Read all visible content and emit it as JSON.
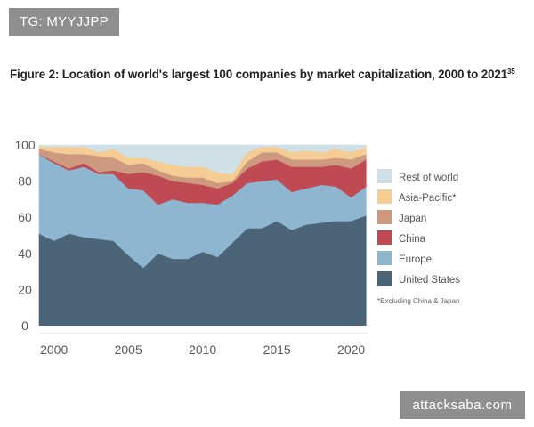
{
  "tag": "TG: MYYJJPP",
  "watermark": "attacksaba.com",
  "figure": {
    "title": "Figure 2: Location of world's largest 100 companies by market capitalization, 2000 to 2021",
    "footnote_ref": "35"
  },
  "chart_data": {
    "type": "area",
    "stacked": true,
    "title": "Figure 2: Location of world's largest 100 companies by market capitalization, 2000 to 2021",
    "xlabel": "",
    "ylabel": "",
    "xlim": [
      1999,
      2021.1
    ],
    "ylim": [
      0,
      100
    ],
    "grid": false,
    "x": [
      1999,
      2000,
      2001,
      2002,
      2003,
      2004,
      2005,
      2006,
      2007,
      2008,
      2009,
      2010,
      2011,
      2012,
      2013,
      2014,
      2015,
      2016,
      2017,
      2018,
      2019,
      2020,
      2021
    ],
    "series": [
      {
        "name": "United States",
        "color": "#4b6478",
        "values": [
          51,
          47,
          51,
          49,
          48,
          47,
          39,
          32,
          40,
          37,
          37,
          41,
          38,
          46,
          54,
          54,
          58,
          53,
          56,
          57,
          58,
          58,
          61
        ]
      },
      {
        "name": "Europe",
        "color": "#8eb6d0",
        "values": [
          44,
          43,
          35,
          39,
          36,
          37,
          37,
          43,
          27,
          33,
          31,
          27,
          29,
          26,
          25,
          26,
          23,
          21,
          20,
          21,
          19,
          13,
          16
        ]
      },
      {
        "name": "China",
        "color": "#c04a53",
        "values": [
          0,
          1,
          1,
          2,
          1,
          2,
          8,
          10,
          16,
          10,
          11,
          10,
          9,
          7,
          8,
          11,
          11,
          14,
          12,
          10,
          12,
          16,
          15
        ]
      },
      {
        "name": "Japan",
        "color": "#cd9a80",
        "values": [
          3,
          5,
          8,
          5,
          9,
          7,
          5,
          5,
          3,
          3,
          3,
          4,
          3,
          1,
          4,
          5,
          4,
          4,
          4,
          4,
          4,
          5,
          3
        ]
      },
      {
        "name": "Asia-Pacific*",
        "color": "#f4cc94",
        "values": [
          1,
          3,
          4,
          4,
          2,
          5,
          4,
          3,
          5,
          6,
          6,
          6,
          6,
          4,
          5,
          3,
          3,
          4,
          5,
          4,
          5,
          4,
          4
        ]
      },
      {
        "name": "Rest of world",
        "color": "#cfe0e6",
        "values": [
          1,
          1,
          1,
          1,
          4,
          2,
          7,
          7,
          9,
          11,
          12,
          12,
          15,
          16,
          4,
          1,
          1,
          4,
          3,
          4,
          2,
          4,
          1
        ]
      }
    ],
    "y_ticks": [
      "0",
      "20",
      "40",
      "60",
      "80",
      "100"
    ],
    "y_tick_values": [
      0,
      20,
      40,
      60,
      80,
      100
    ],
    "x_ticks": [
      "2000",
      "2005",
      "2010",
      "2015",
      "2020"
    ],
    "x_tick_values": [
      2000,
      2005,
      2010,
      2015,
      2020
    ],
    "legend": {
      "placement": "right",
      "order": [
        "Rest of world",
        "Asia-Pacific*",
        "Japan",
        "China",
        "Europe",
        "United States"
      ],
      "note": "*Excluding China & Japan"
    }
  }
}
